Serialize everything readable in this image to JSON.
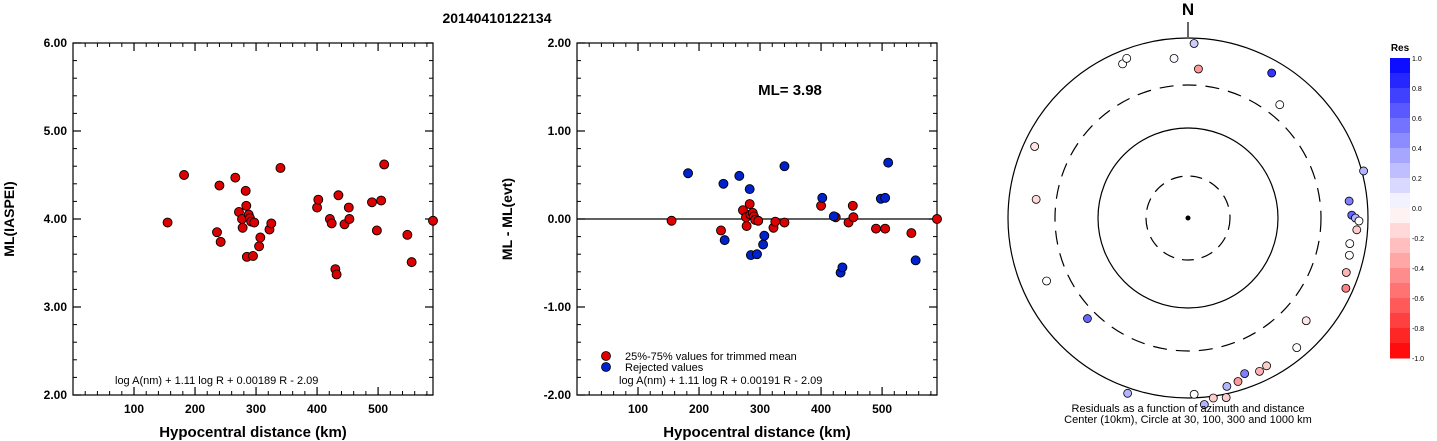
{
  "title": "20140410122134",
  "chart_data": [
    {
      "type": "scatter",
      "xlabel": "Hypocentral distance (km)",
      "ylabel": "ML(IASPEI)",
      "xlim": [
        0,
        590
      ],
      "ylim": [
        2.0,
        6.0
      ],
      "xticks": [
        "100",
        "200",
        "300",
        "400",
        "500"
      ],
      "yticks": [
        "6.00",
        "5.00",
        "4.00",
        "3.00",
        "2.00"
      ],
      "formula": "log A(nm) + 1.11 log R + 0.00189 R - 2.09",
      "marker_color": "#dd0000",
      "x": [
        155,
        182,
        236,
        240,
        242,
        266,
        272,
        277,
        278,
        283,
        284,
        285,
        288,
        290,
        292,
        295,
        297,
        305,
        307,
        322,
        325,
        340,
        400,
        402,
        421,
        424,
        430,
        432,
        435,
        445,
        452,
        453,
        490,
        498,
        505,
        510,
        548,
        555,
        590
      ],
      "y": [
        3.96,
        4.5,
        3.85,
        4.38,
        3.74,
        4.47,
        4.08,
        4.0,
        3.9,
        4.32,
        4.15,
        3.57,
        4.05,
        4.01,
        3.97,
        3.58,
        3.96,
        3.69,
        3.79,
        3.88,
        3.95,
        4.58,
        4.13,
        4.22,
        4.0,
        3.95,
        3.43,
        3.37,
        4.27,
        3.94,
        4.13,
        4.0,
        4.19,
        3.87,
        4.21,
        4.62,
        3.82,
        3.51,
        3.98
      ]
    },
    {
      "type": "scatter",
      "xlabel": "Hypocentral distance (km)",
      "ylabel": "ML - ML(evt)",
      "xlim": [
        0,
        590
      ],
      "ylim": [
        -2.0,
        2.0
      ],
      "xticks": [
        "100",
        "200",
        "300",
        "400",
        "500"
      ],
      "yticks": [
        "2.00",
        "1.00",
        "0.00",
        "-1.00",
        "-2.00"
      ],
      "annotation": "ML= 3.98",
      "formula": "log A(nm) + 1.11 log R + 0.00191 R - 2.09",
      "legend": [
        {
          "label": "25%-75% values for trimmed mean",
          "color": "#dd0000"
        },
        {
          "label": "Rejected values",
          "color": "#0022cc"
        }
      ],
      "series": [
        {
          "name": "25%-75% values for trimmed mean",
          "color": "#dd0000",
          "x": [
            155,
            236,
            272,
            277,
            278,
            283,
            284,
            288,
            290,
            292,
            297,
            322,
            325,
            340,
            400,
            424,
            445,
            452,
            453,
            490,
            505,
            548,
            590
          ],
          "y": [
            -0.02,
            -0.13,
            0.1,
            0.02,
            -0.08,
            0.17,
            0.05,
            0.07,
            0.03,
            -0.01,
            -0.02,
            -0.1,
            -0.03,
            -0.04,
            0.15,
            0.02,
            -0.04,
            0.15,
            0.02,
            -0.11,
            -0.11,
            -0.16,
            0.0
          ]
        },
        {
          "name": "Rejected values",
          "color": "#0022cc",
          "x": [
            182,
            240,
            242,
            266,
            283,
            285,
            295,
            305,
            307,
            340,
            402,
            421,
            432,
            435,
            498,
            505,
            510,
            555
          ],
          "y": [
            0.52,
            0.4,
            -0.24,
            0.49,
            0.34,
            -0.41,
            -0.4,
            -0.29,
            -0.19,
            0.6,
            0.24,
            0.03,
            -0.61,
            -0.55,
            0.23,
            0.24,
            0.64,
            -0.47
          ]
        }
      ]
    },
    {
      "type": "polar-scatter",
      "north_label": "N",
      "caption_line1": "Residuals as a function of azimuth and distance",
      "caption_line2": "Center (10km), Circle at 30, 100, 300 and 1000 km",
      "colorbar_title": "Res",
      "colorbar_ticks": [
        "1.0",
        "0.8",
        "0.6",
        "0.4",
        "0.2",
        "0.0",
        "-0.2",
        "-0.4",
        "-0.6",
        "-0.8",
        "-1.0"
      ],
      "colorbar_colors": {
        "positive": "#0000ff",
        "negative": "#ff0000",
        "zero": "#ffffff"
      },
      "stations": [
        {
          "az": 355,
          "r": 0.89,
          "res": 0.03
        },
        {
          "az": 2,
          "r": 0.97,
          "res": 0.2
        },
        {
          "az": 4,
          "r": 0.83,
          "res": -0.4
        },
        {
          "az": 337,
          "r": 0.93,
          "res": 0.0
        },
        {
          "az": 339,
          "r": 0.95,
          "res": 0.0
        },
        {
          "az": 30,
          "r": 0.93,
          "res": 0.8
        },
        {
          "az": 39,
          "r": 0.81,
          "res": 0.0
        },
        {
          "az": 295,
          "r": 0.94,
          "res": -0.1
        },
        {
          "az": 277,
          "r": 0.85,
          "res": -0.15
        },
        {
          "az": 84,
          "r": 0.9,
          "res": 0.5
        },
        {
          "az": 89,
          "r": 0.91,
          "res": 0.6
        },
        {
          "az": 90,
          "r": 0.93,
          "res": 0.3
        },
        {
          "az": 91,
          "r": 0.95,
          "res": 0.0
        },
        {
          "az": 94,
          "r": 0.94,
          "res": -0.2
        },
        {
          "az": 75,
          "r": 1.01,
          "res": 0.3
        },
        {
          "az": 99,
          "r": 0.91,
          "res": 0.0
        },
        {
          "az": 103,
          "r": 0.92,
          "res": 0.0
        },
        {
          "az": 109,
          "r": 0.93,
          "res": -0.3
        },
        {
          "az": 114,
          "r": 0.96,
          "res": -0.5
        },
        {
          "az": 131,
          "r": 0.87,
          "res": -0.1
        },
        {
          "az": 140,
          "r": 0.94,
          "res": 0.0
        },
        {
          "az": 152,
          "r": 0.93,
          "res": -0.2
        },
        {
          "az": 155,
          "r": 0.94,
          "res": -0.3
        },
        {
          "az": 160,
          "r": 0.92,
          "res": 0.5
        },
        {
          "az": 163,
          "r": 0.95,
          "res": -0.4
        },
        {
          "az": 167,
          "r": 0.96,
          "res": 0.3
        },
        {
          "az": 168,
          "r": 1.02,
          "res": -0.2
        },
        {
          "az": 172,
          "r": 1.01,
          "res": -0.2
        },
        {
          "az": 178,
          "r": 0.98,
          "res": 0.0
        },
        {
          "az": 175,
          "r": 1.04,
          "res": 0.3
        },
        {
          "az": 199,
          "r": 1.03,
          "res": 0.3
        },
        {
          "az": 225,
          "r": 0.79,
          "res": 0.6
        },
        {
          "az": 246,
          "r": 0.86,
          "res": 0.0
        }
      ]
    }
  ]
}
